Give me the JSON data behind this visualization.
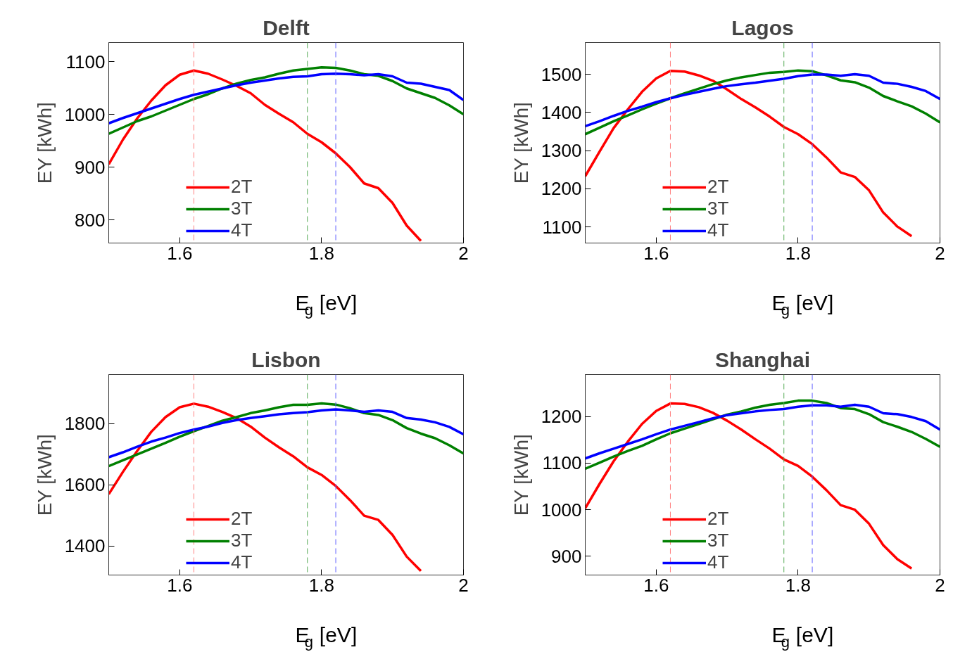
{
  "chart_data": [
    {
      "type": "line",
      "title": "Delft",
      "xlabel": "E$_{g}$ [eV]",
      "ylabel": "EY [kWh]",
      "x": [
        1.5,
        1.52,
        1.54,
        1.56,
        1.58,
        1.6,
        1.62,
        1.64,
        1.66,
        1.68,
        1.7,
        1.72,
        1.74,
        1.76,
        1.78,
        1.8,
        1.82,
        1.84,
        1.86,
        1.88,
        1.9,
        1.92,
        1.94,
        1.96,
        1.98,
        2.0
      ],
      "xlim": [
        1.5,
        2.0
      ],
      "xticks": [
        1.6,
        1.8,
        2
      ],
      "ylim": [
        756,
        1136
      ],
      "yticks": [
        800,
        900,
        1000,
        1100
      ],
      "legend": "bottom",
      "series": [
        {
          "name": "2T",
          "color": "#ff0000",
          "values": [
            905,
            952,
            992,
            1026,
            1055,
            1075,
            1083,
            1077,
            1066,
            1054,
            1040,
            1018,
            1001,
            985,
            963,
            947,
            926,
            900,
            869,
            860,
            832,
            789,
            760,
            null,
            null,
            null
          ]
        },
        {
          "name": "3T",
          "color": "#008000",
          "values": [
            963,
            975,
            987,
            996,
            1007,
            1018,
            1029,
            1038,
            1049,
            1058,
            1065,
            1070,
            1077,
            1083,
            1086,
            1089,
            1088,
            1083,
            1076,
            1073,
            1063,
            1049,
            1040,
            1031,
            1017,
            1000
          ]
        },
        {
          "name": "4T",
          "color": "#0000ff",
          "values": [
            983,
            993,
            1002,
            1011,
            1020,
            1029,
            1037,
            1043,
            1049,
            1055,
            1060,
            1064,
            1068,
            1071,
            1072,
            1076,
            1077,
            1076,
            1074,
            1076,
            1072,
            1060,
            1058,
            1052,
            1046,
            1027
          ]
        }
      ],
      "ref_lines": [
        {
          "axis": "x",
          "value": 1.62,
          "color": "#ff8080",
          "line_style": "dashed"
        },
        {
          "axis": "x",
          "value": 1.78,
          "color": "#55aa55",
          "line_style": "dashed"
        },
        {
          "axis": "x",
          "value": 1.82,
          "color": "#6060ff",
          "line_style": "dashed"
        }
      ]
    },
    {
      "type": "line",
      "title": "Lagos",
      "xlabel": "E$_{g}$ [eV]",
      "ylabel": "EY [kWh]",
      "x": [
        1.5,
        1.52,
        1.54,
        1.56,
        1.58,
        1.6,
        1.62,
        1.64,
        1.66,
        1.68,
        1.7,
        1.72,
        1.74,
        1.76,
        1.78,
        1.8,
        1.82,
        1.84,
        1.86,
        1.88,
        1.9,
        1.92,
        1.94,
        1.96,
        1.98,
        2.0
      ],
      "xlim": [
        1.5,
        2.0
      ],
      "xticks": [
        1.6,
        1.8,
        2
      ],
      "ylim": [
        1058,
        1583
      ],
      "yticks": [
        1100,
        1200,
        1300,
        1400,
        1500
      ],
      "legend": "bottom",
      "series": [
        {
          "name": "2T",
          "color": "#ff0000",
          "values": [
            1233,
            1297,
            1359,
            1408,
            1454,
            1489,
            1509,
            1507,
            1497,
            1483,
            1460,
            1435,
            1413,
            1389,
            1362,
            1343,
            1317,
            1282,
            1243,
            1231,
            1196,
            1138,
            1101,
            1076,
            null,
            null
          ]
        },
        {
          "name": "3T",
          "color": "#008000",
          "values": [
            1343,
            1360,
            1377,
            1392,
            1408,
            1423,
            1437,
            1450,
            1462,
            1474,
            1484,
            1492,
            1498,
            1504,
            1506,
            1510,
            1508,
            1497,
            1484,
            1479,
            1465,
            1443,
            1429,
            1416,
            1397,
            1374
          ]
        },
        {
          "name": "4T",
          "color": "#0000ff",
          "values": [
            1364,
            1377,
            1391,
            1404,
            1415,
            1427,
            1437,
            1446,
            1454,
            1462,
            1469,
            1474,
            1478,
            1483,
            1488,
            1495,
            1499,
            1499,
            1496,
            1500,
            1496,
            1478,
            1475,
            1467,
            1456,
            1435
          ]
        }
      ],
      "ref_lines": [
        {
          "axis": "x",
          "value": 1.62,
          "color": "#ff8080",
          "line_style": "dashed"
        },
        {
          "axis": "x",
          "value": 1.78,
          "color": "#55aa55",
          "line_style": "dashed"
        },
        {
          "axis": "x",
          "value": 1.82,
          "color": "#6060ff",
          "line_style": "dashed"
        }
      ]
    },
    {
      "type": "line",
      "title": "Lisbon",
      "xlabel": "E$_{g}$ [eV]",
      "ylabel": "EY [kWh]",
      "x": [
        1.5,
        1.52,
        1.54,
        1.56,
        1.58,
        1.6,
        1.62,
        1.64,
        1.66,
        1.68,
        1.7,
        1.72,
        1.74,
        1.76,
        1.78,
        1.8,
        1.82,
        1.84,
        1.86,
        1.88,
        1.9,
        1.92,
        1.94,
        1.96,
        1.98,
        2.0
      ],
      "xlim": [
        1.5,
        2.0
      ],
      "xticks": [
        1.6,
        1.8,
        2
      ],
      "ylim": [
        1305,
        1960
      ],
      "yticks": [
        1400,
        1600,
        1800
      ],
      "legend": "bottom",
      "series": [
        {
          "name": "2T",
          "color": "#ff0000",
          "values": [
            1569,
            1642,
            1710,
            1773,
            1821,
            1853,
            1865,
            1855,
            1838,
            1818,
            1790,
            1754,
            1722,
            1693,
            1657,
            1632,
            1596,
            1550,
            1499,
            1485,
            1436,
            1365,
            1318,
            null,
            null,
            null
          ]
        },
        {
          "name": "3T",
          "color": "#008000",
          "values": [
            1661,
            1680,
            1699,
            1718,
            1737,
            1757,
            1775,
            1792,
            1809,
            1821,
            1834,
            1843,
            1853,
            1861,
            1861,
            1866,
            1862,
            1850,
            1834,
            1828,
            1811,
            1785,
            1767,
            1752,
            1729,
            1702
          ]
        },
        {
          "name": "4T",
          "color": "#0000ff",
          "values": [
            1690,
            1706,
            1724,
            1741,
            1754,
            1769,
            1780,
            1790,
            1802,
            1811,
            1818,
            1824,
            1830,
            1834,
            1837,
            1843,
            1846,
            1843,
            1838,
            1843,
            1838,
            1818,
            1813,
            1804,
            1789,
            1765
          ]
        }
      ],
      "ref_lines": [
        {
          "axis": "x",
          "value": 1.62,
          "color": "#ff8080",
          "line_style": "dashed"
        },
        {
          "axis": "x",
          "value": 1.78,
          "color": "#55aa55",
          "line_style": "dashed"
        },
        {
          "axis": "x",
          "value": 1.82,
          "color": "#6060ff",
          "line_style": "dashed"
        }
      ]
    },
    {
      "type": "line",
      "title": "Shanghai",
      "xlabel": "E$_{g}$ [eV]",
      "ylabel": "EY [kWh]",
      "x": [
        1.5,
        1.52,
        1.54,
        1.56,
        1.58,
        1.6,
        1.62,
        1.64,
        1.66,
        1.68,
        1.7,
        1.72,
        1.74,
        1.76,
        1.78,
        1.8,
        1.82,
        1.84,
        1.86,
        1.88,
        1.9,
        1.92,
        1.94,
        1.96,
        1.98,
        2.0
      ],
      "xlim": [
        1.5,
        2.0
      ],
      "xticks": [
        1.6,
        1.8,
        2
      ],
      "ylim": [
        860,
        1290
      ],
      "yticks": [
        900,
        1000,
        1100,
        1200
      ],
      "legend": "bottom",
      "series": [
        {
          "name": "2T",
          "color": "#ff0000",
          "values": [
            1003,
            1055,
            1104,
            1146,
            1184,
            1212,
            1228,
            1227,
            1220,
            1208,
            1191,
            1172,
            1151,
            1131,
            1108,
            1094,
            1071,
            1042,
            1010,
            1000,
            970,
            924,
            894,
            874,
            null,
            null
          ]
        },
        {
          "name": "3T",
          "color": "#008000",
          "values": [
            1088,
            1101,
            1114,
            1126,
            1137,
            1151,
            1164,
            1174,
            1184,
            1194,
            1204,
            1211,
            1219,
            1225,
            1229,
            1234,
            1234,
            1229,
            1218,
            1216,
            1205,
            1188,
            1178,
            1167,
            1152,
            1135
          ]
        },
        {
          "name": "4T",
          "color": "#0000ff",
          "values": [
            1110,
            1121,
            1131,
            1141,
            1151,
            1162,
            1172,
            1180,
            1188,
            1196,
            1203,
            1207,
            1211,
            1214,
            1216,
            1221,
            1224,
            1224,
            1221,
            1225,
            1221,
            1207,
            1205,
            1199,
            1190,
            1172
          ]
        }
      ],
      "ref_lines": [
        {
          "axis": "x",
          "value": 1.62,
          "color": "#ff8080",
          "line_style": "dashed"
        },
        {
          "axis": "x",
          "value": 1.78,
          "color": "#55aa55",
          "line_style": "dashed"
        },
        {
          "axis": "x",
          "value": 1.82,
          "color": "#6060ff",
          "line_style": "dashed"
        }
      ]
    }
  ]
}
